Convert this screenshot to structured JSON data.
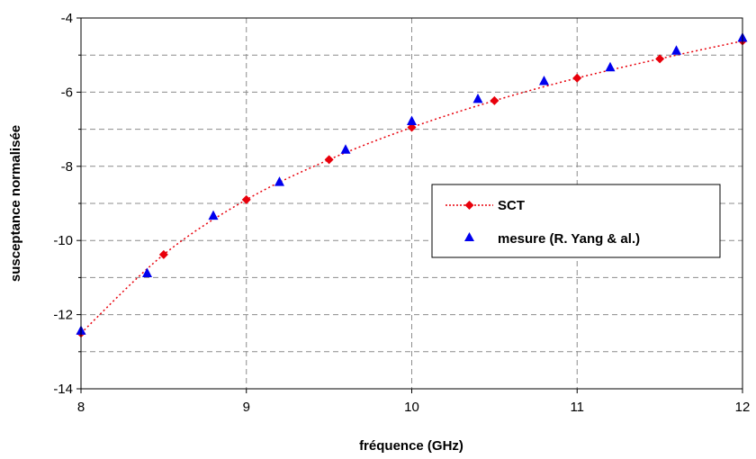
{
  "chart_data": {
    "type": "scatter",
    "xlabel": "fréquence (GHz)",
    "ylabel": "susceptance normalisée",
    "xlim": [
      8,
      12
    ],
    "ylim": [
      -14,
      -4
    ],
    "xticks": [
      8,
      9,
      10,
      11,
      12
    ],
    "yticks": [
      -14,
      -12,
      -10,
      -8,
      -6,
      -4
    ],
    "x_tick_labels": [
      "8",
      "9",
      "10",
      "11",
      "12"
    ],
    "y_tick_labels": [
      "-14",
      "-12",
      "-10",
      "-8",
      "-6",
      "-4"
    ],
    "grid": true,
    "legend_position": "right",
    "series": [
      {
        "name": "SCT",
        "style": "dotted line with diamond markers",
        "color": "#e8000b",
        "x": [
          8.0,
          8.5,
          9.0,
          9.5,
          10.0,
          10.5,
          11.0,
          11.5,
          12.0
        ],
        "y": [
          -12.5,
          -10.38,
          -8.9,
          -7.82,
          -6.95,
          -6.23,
          -5.62,
          -5.1,
          -4.62
        ]
      },
      {
        "name": "mesure (R. Yang & al.)",
        "style": "triangle markers",
        "color": "#0000ee",
        "x": [
          8.0,
          8.4,
          8.8,
          9.2,
          9.6,
          10.0,
          10.4,
          10.8,
          11.2,
          11.6,
          12.0
        ],
        "y": [
          -12.43,
          -10.88,
          -9.33,
          -8.42,
          -7.55,
          -6.78,
          -6.18,
          -5.7,
          -5.33,
          -4.88,
          -4.53
        ]
      }
    ]
  }
}
